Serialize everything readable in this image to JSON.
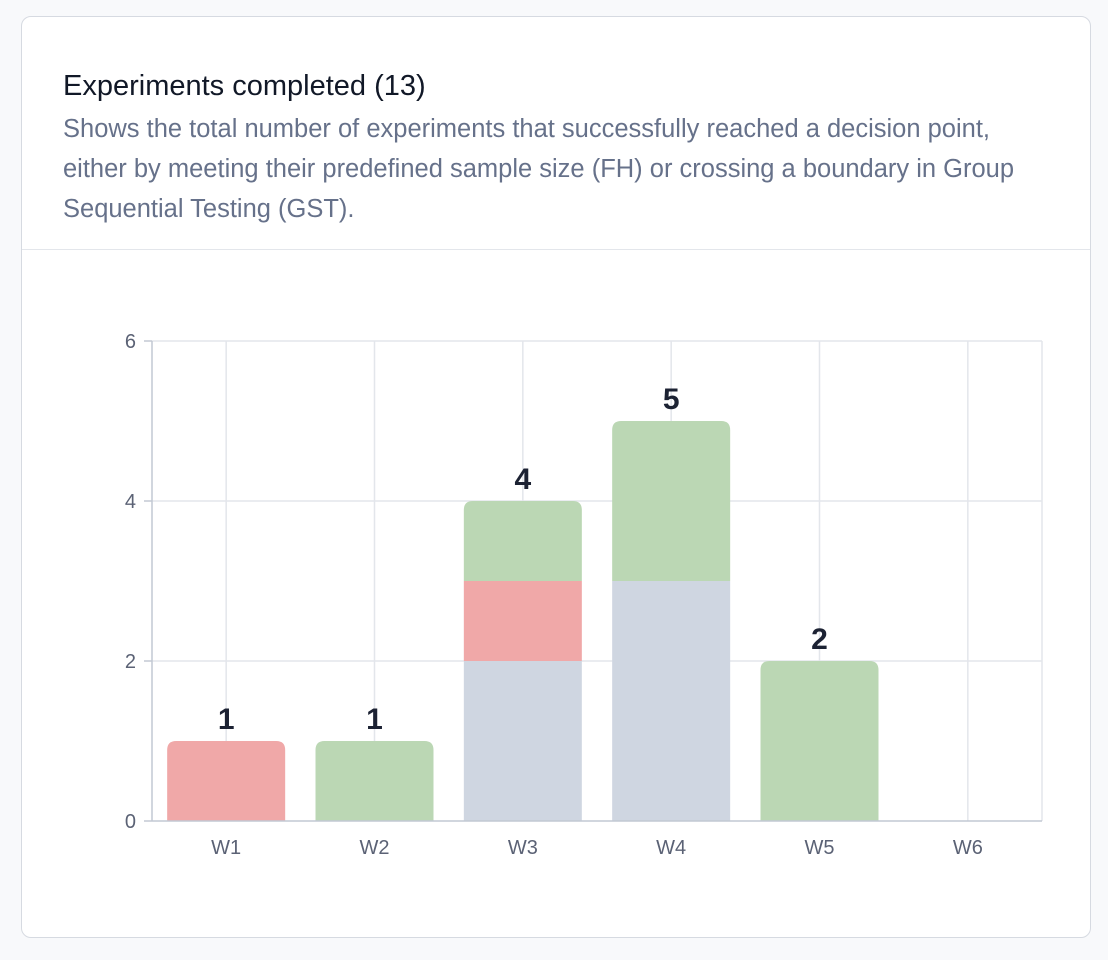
{
  "card": {
    "title": "Experiments completed (13)",
    "description": "Shows the total number of experiments that successfully reached a decision point, either by meeting their predefined sample size (FH) or crossing a boundary in Group Sequential Testing (GST)."
  },
  "colors": {
    "gray_segment": "#cfd6e1",
    "red_segment": "#f0a8a8",
    "green_segment": "#bbd7b4",
    "grid": "#e3e6eb",
    "axis": "#c2c8d3"
  },
  "chart_data": {
    "type": "bar",
    "stacked": true,
    "categories": [
      "W1",
      "W2",
      "W3",
      "W4",
      "W5",
      "W6"
    ],
    "series": [
      {
        "color": "#cfd6e1",
        "values": [
          0,
          0,
          2,
          3,
          0,
          0
        ]
      },
      {
        "color": "#f0a8a8",
        "values": [
          1,
          0,
          1,
          0,
          0,
          0
        ]
      },
      {
        "color": "#bbd7b4",
        "values": [
          0,
          1,
          1,
          2,
          2,
          0
        ]
      }
    ],
    "totals": [
      1,
      1,
      4,
      5,
      2,
      null
    ],
    "ylim": [
      0,
      6
    ],
    "yticks": [
      0,
      2,
      4,
      6
    ],
    "grid": true,
    "legend": "none",
    "title": "",
    "xlabel": "",
    "ylabel": ""
  }
}
